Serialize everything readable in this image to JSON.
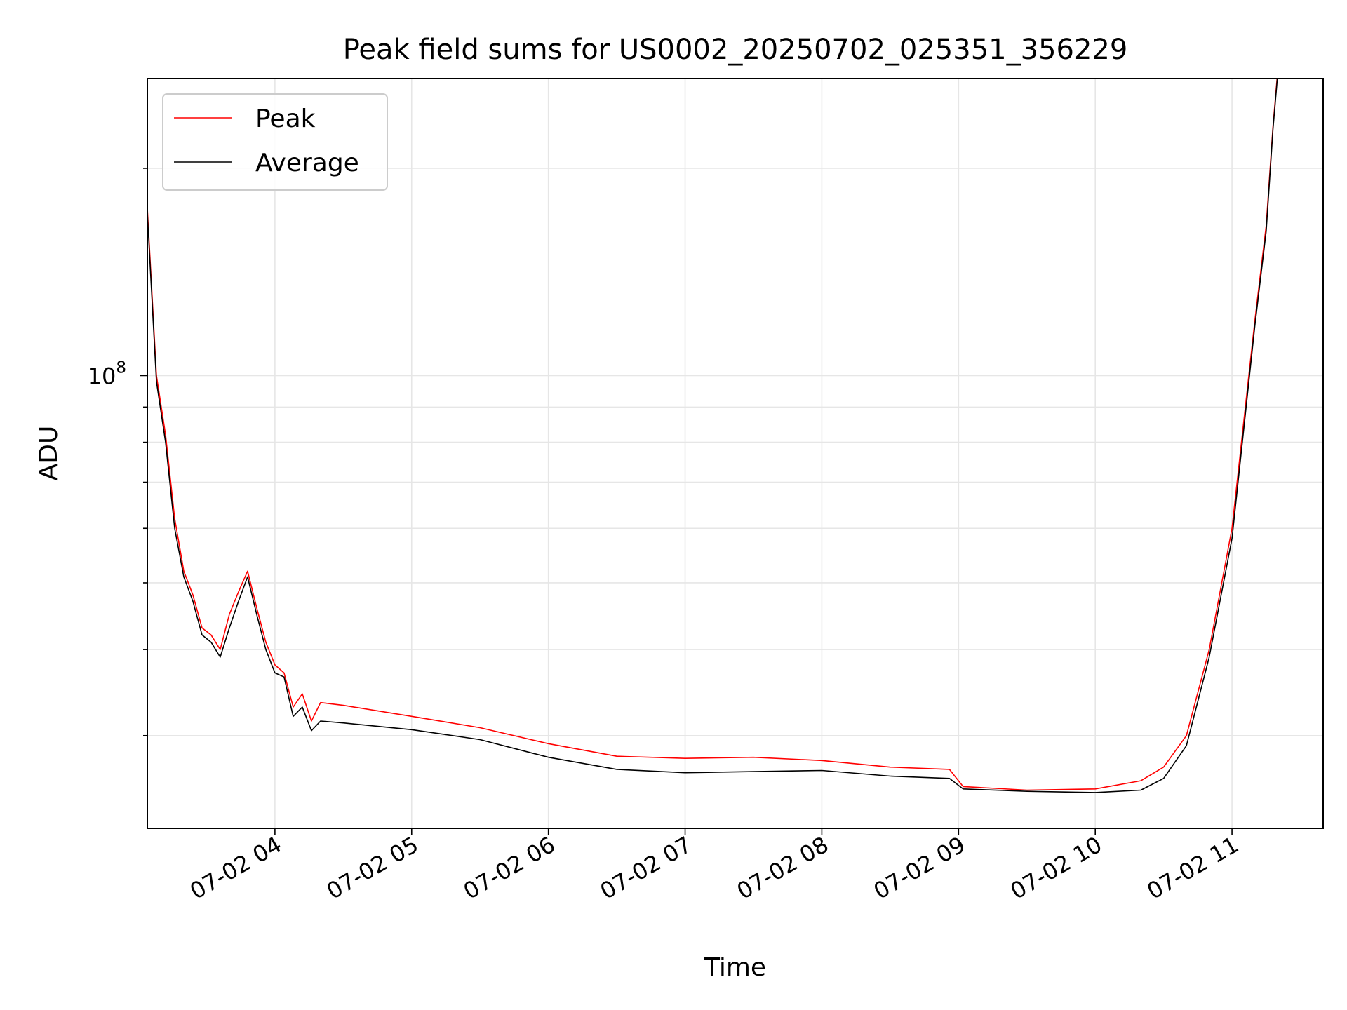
{
  "chart_data": {
    "type": "line",
    "title": "Peak field sums for US0002_20250702_025351_356229",
    "xlabel": "Time",
    "ylabel": "ADU",
    "yscale": "log",
    "ylim": [
      22000000,
      270000000
    ],
    "y_tick_labels": [
      {
        "value": 100000000,
        "base": "10",
        "exp": "8"
      }
    ],
    "x_axis_type": "datetime",
    "xlim": [
      "2025-07-02 03:04",
      "2025-07-02 11:40"
    ],
    "x_ticks": [
      {
        "t": "2025-07-02 04:00",
        "label": "07-02 04"
      },
      {
        "t": "2025-07-02 05:00",
        "label": "07-02 05"
      },
      {
        "t": "2025-07-02 06:00",
        "label": "07-02 06"
      },
      {
        "t": "2025-07-02 07:00",
        "label": "07-02 07"
      },
      {
        "t": "2025-07-02 08:00",
        "label": "07-02 08"
      },
      {
        "t": "2025-07-02 09:00",
        "label": "07-02 09"
      },
      {
        "t": "2025-07-02 10:00",
        "label": "07-02 10"
      },
      {
        "t": "2025-07-02 11:00",
        "label": "07-02 11"
      }
    ],
    "grid": true,
    "legend_position": "upper-left",
    "series": [
      {
        "name": "Peak",
        "color": "#ff0000",
        "points": [
          [
            "2025-07-02 03:04",
            175000000
          ],
          [
            "2025-07-02 03:08",
            100000000
          ],
          [
            "2025-07-02 03:12",
            82000000
          ],
          [
            "2025-07-02 03:16",
            62000000
          ],
          [
            "2025-07-02 03:20",
            52000000
          ],
          [
            "2025-07-02 03:24",
            48000000
          ],
          [
            "2025-07-02 03:28",
            43000000
          ],
          [
            "2025-07-02 03:32",
            42000000
          ],
          [
            "2025-07-02 03:36",
            40000000
          ],
          [
            "2025-07-02 03:40",
            45000000
          ],
          [
            "2025-07-02 03:44",
            48500000
          ],
          [
            "2025-07-02 03:48",
            52000000
          ],
          [
            "2025-07-02 03:52",
            46000000
          ],
          [
            "2025-07-02 03:56",
            41000000
          ],
          [
            "2025-07-02 04:00",
            38000000
          ],
          [
            "2025-07-02 04:04",
            37000000
          ],
          [
            "2025-07-02 04:08",
            33000000
          ],
          [
            "2025-07-02 04:12",
            34500000
          ],
          [
            "2025-07-02 04:16",
            31500000
          ],
          [
            "2025-07-02 04:20",
            33500000
          ],
          [
            "2025-07-02 04:30",
            33200000
          ],
          [
            "2025-07-02 05:00",
            32000000
          ],
          [
            "2025-07-02 05:30",
            30800000
          ],
          [
            "2025-07-02 06:00",
            29200000
          ],
          [
            "2025-07-02 06:30",
            28000000
          ],
          [
            "2025-07-02 07:00",
            27800000
          ],
          [
            "2025-07-02 07:30",
            27900000
          ],
          [
            "2025-07-02 08:00",
            27600000
          ],
          [
            "2025-07-02 08:30",
            27000000
          ],
          [
            "2025-07-02 08:56",
            26800000
          ],
          [
            "2025-07-02 09:02",
            25300000
          ],
          [
            "2025-07-02 09:30",
            25000000
          ],
          [
            "2025-07-02 10:00",
            25100000
          ],
          [
            "2025-07-02 10:20",
            25800000
          ],
          [
            "2025-07-02 10:30",
            27000000
          ],
          [
            "2025-07-02 10:40",
            30000000
          ],
          [
            "2025-07-02 10:50",
            40000000
          ],
          [
            "2025-07-02 11:00",
            60000000
          ],
          [
            "2025-07-02 11:10",
            120000000
          ],
          [
            "2025-07-02 11:15",
            165000000
          ],
          [
            "2025-07-02 11:18",
            230000000
          ],
          [
            "2025-07-02 11:20",
            275000000
          ]
        ]
      },
      {
        "name": "Average",
        "color": "#000000",
        "points": [
          [
            "2025-07-02 03:04",
            172000000
          ],
          [
            "2025-07-02 03:08",
            98000000
          ],
          [
            "2025-07-02 03:12",
            80000000
          ],
          [
            "2025-07-02 03:16",
            60000000
          ],
          [
            "2025-07-02 03:20",
            51000000
          ],
          [
            "2025-07-02 03:24",
            47000000
          ],
          [
            "2025-07-02 03:28",
            42000000
          ],
          [
            "2025-07-02 03:32",
            41000000
          ],
          [
            "2025-07-02 03:36",
            39000000
          ],
          [
            "2025-07-02 03:40",
            43000000
          ],
          [
            "2025-07-02 03:44",
            47000000
          ],
          [
            "2025-07-02 03:48",
            51000000
          ],
          [
            "2025-07-02 03:52",
            45000000
          ],
          [
            "2025-07-02 03:56",
            40000000
          ],
          [
            "2025-07-02 04:00",
            37000000
          ],
          [
            "2025-07-02 04:04",
            36500000
          ],
          [
            "2025-07-02 04:08",
            32000000
          ],
          [
            "2025-07-02 04:12",
            33000000
          ],
          [
            "2025-07-02 04:16",
            30500000
          ],
          [
            "2025-07-02 04:20",
            31500000
          ],
          [
            "2025-07-02 04:30",
            31300000
          ],
          [
            "2025-07-02 05:00",
            30600000
          ],
          [
            "2025-07-02 05:30",
            29600000
          ],
          [
            "2025-07-02 06:00",
            27900000
          ],
          [
            "2025-07-02 06:30",
            26800000
          ],
          [
            "2025-07-02 07:00",
            26500000
          ],
          [
            "2025-07-02 07:30",
            26600000
          ],
          [
            "2025-07-02 08:00",
            26700000
          ],
          [
            "2025-07-02 08:30",
            26200000
          ],
          [
            "2025-07-02 08:56",
            26000000
          ],
          [
            "2025-07-02 09:02",
            25100000
          ],
          [
            "2025-07-02 09:30",
            24900000
          ],
          [
            "2025-07-02 10:00",
            24800000
          ],
          [
            "2025-07-02 10:20",
            25000000
          ],
          [
            "2025-07-02 10:30",
            26000000
          ],
          [
            "2025-07-02 10:40",
            29000000
          ],
          [
            "2025-07-02 10:50",
            39000000
          ],
          [
            "2025-07-02 11:00",
            58000000
          ],
          [
            "2025-07-02 11:10",
            118000000
          ],
          [
            "2025-07-02 11:15",
            162000000
          ],
          [
            "2025-07-02 11:18",
            228000000
          ],
          [
            "2025-07-02 11:20",
            272000000
          ]
        ]
      }
    ]
  }
}
